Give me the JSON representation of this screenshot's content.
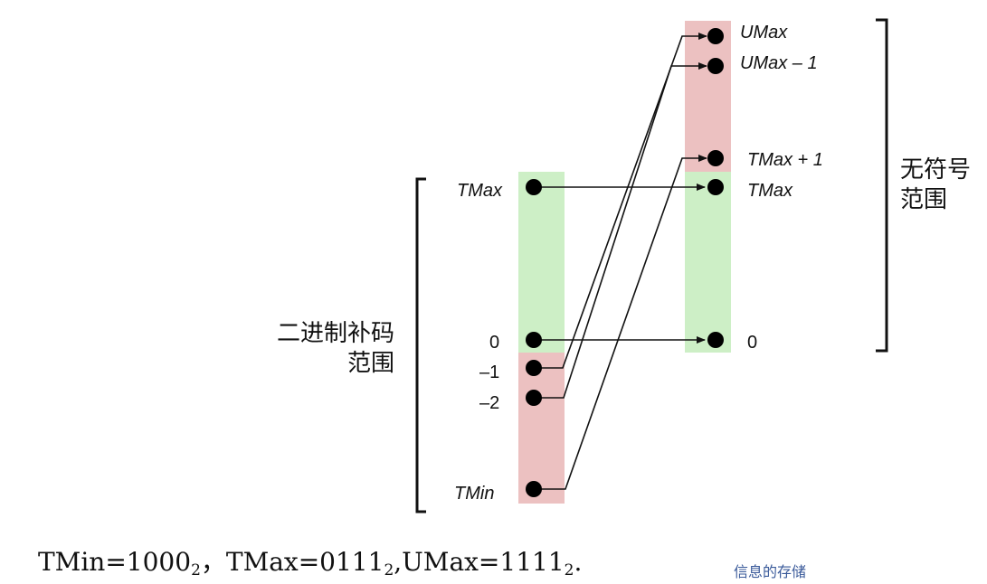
{
  "twos": {
    "title_line1": "二进制补码",
    "title_line2": "范围",
    "labels": {
      "tmax": "TMax",
      "zero": "0",
      "minus1": "–1",
      "minus2": "–2",
      "tmin": "TMin"
    }
  },
  "unsigned": {
    "title_line1": "无符号",
    "title_line2": "范围",
    "labels": {
      "umax": "UMax",
      "umax_minus1": "UMax – 1",
      "tmax_plus1": "TMax  + 1",
      "tmax": "TMax",
      "zero": "0"
    }
  },
  "formula": {
    "tmin_label": "TMin=1000",
    "tmax_label": "，TMax=0111",
    "umax_label": ",UMax=1111",
    "base": "2",
    "end": "."
  },
  "footer": {
    "text": "信息的存储"
  },
  "colors": {
    "positive": "#cdefc6",
    "negative": "#ecc1c1",
    "line": "#111111",
    "footer": "#3a5a9a"
  }
}
